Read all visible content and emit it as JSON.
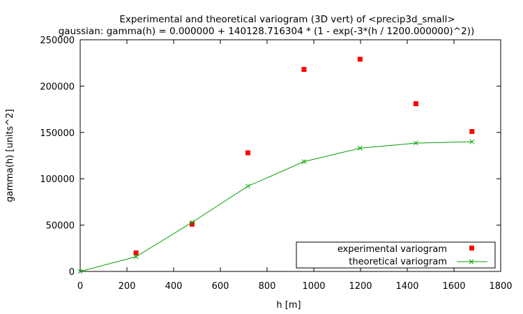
{
  "chart_data": {
    "type": "scatter",
    "title": "Experimental and theoretical variogram (3D vert) of <precip3d_small>",
    "subtitle": "gaussian: gamma(h) = 0.000000 + 140128.716304 * (1 - exp(-3*(h / 1200.000000)^2))",
    "xlabel": "h [m]",
    "ylabel": "gamma(h) [units^2]",
    "xlim": [
      0,
      1800
    ],
    "ylim": [
      0,
      250000
    ],
    "x_ticks": [
      0,
      200,
      400,
      600,
      800,
      1000,
      1200,
      1400,
      1600,
      1800
    ],
    "y_ticks": [
      0,
      50000,
      100000,
      150000,
      200000,
      250000
    ],
    "legend_position": "bottom-right",
    "grid": false,
    "series": [
      {
        "name": "experimental variogram",
        "marker": "square",
        "color": "#ff0000",
        "x": [
          239,
          479,
          718,
          958,
          1198,
          1437,
          1677
        ],
        "y": [
          20000,
          51000,
          128000,
          218000,
          229000,
          181000,
          151000
        ]
      },
      {
        "name": "theoretical variogram",
        "marker": "x",
        "line": true,
        "color": "#00a000",
        "x": [
          0,
          239,
          479,
          718,
          958,
          1198,
          1437,
          1677
        ],
        "y": [
          0,
          15900,
          53000,
          92000,
          118500,
          133000,
          138500,
          140000
        ]
      }
    ]
  }
}
